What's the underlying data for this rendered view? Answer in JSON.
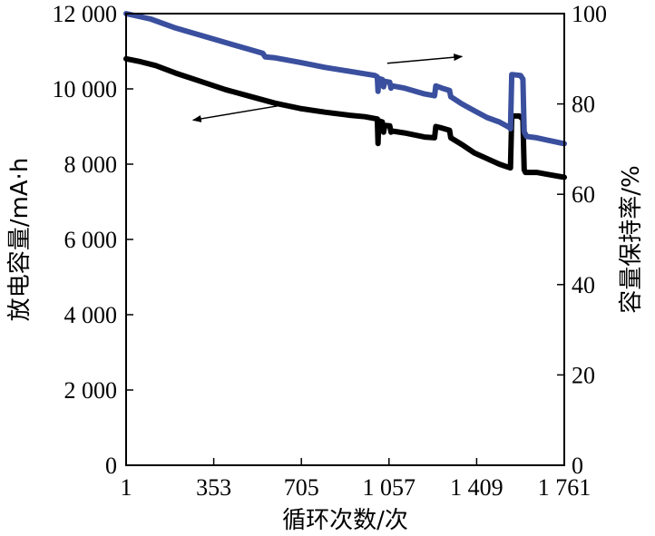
{
  "chart_data": {
    "type": "line",
    "xlabel": "循环次数/次",
    "ylabel_left": "放电容量/mA·h",
    "ylabel_right": "容量保持率/%",
    "x_ticks": [
      {
        "value": 1,
        "label": "1"
      },
      {
        "value": 353,
        "label": "353"
      },
      {
        "value": 705,
        "label": "705"
      },
      {
        "value": 1057,
        "label": "1 057"
      },
      {
        "value": 1409,
        "label": "1 409"
      },
      {
        "value": 1761,
        "label": "1 761"
      }
    ],
    "y_left_ticks": [
      {
        "value": 0,
        "label": "0"
      },
      {
        "value": 2000,
        "label": "2 000"
      },
      {
        "value": 4000,
        "label": "4 000"
      },
      {
        "value": 6000,
        "label": "6 000"
      },
      {
        "value": 8000,
        "label": "8 000"
      },
      {
        "value": 10000,
        "label": "10 000"
      },
      {
        "value": 12000,
        "label": "12 000"
      }
    ],
    "y_right_ticks": [
      {
        "value": 0,
        "label": "0"
      },
      {
        "value": 20,
        "label": "20"
      },
      {
        "value": 40,
        "label": "40"
      },
      {
        "value": 60,
        "label": "60"
      },
      {
        "value": 80,
        "label": "80"
      },
      {
        "value": 100,
        "label": "100"
      }
    ],
    "xlim": [
      1,
      1761
    ],
    "ylim_left": [
      0,
      12000
    ],
    "ylim_right": [
      0,
      100
    ],
    "grid": false,
    "series": [
      {
        "axis": "left",
        "color": "#000000",
        "points": [
          [
            1,
            10800
          ],
          [
            60,
            10720
          ],
          [
            120,
            10620
          ],
          [
            200,
            10420
          ],
          [
            300,
            10200
          ],
          [
            400,
            9980
          ],
          [
            500,
            9800
          ],
          [
            600,
            9620
          ],
          [
            700,
            9480
          ],
          [
            800,
            9380
          ],
          [
            900,
            9300
          ],
          [
            960,
            9260
          ],
          [
            1010,
            9200
          ],
          [
            1013,
            8550
          ],
          [
            1016,
            9150
          ],
          [
            1030,
            9120
          ],
          [
            1035,
            8850
          ],
          [
            1040,
            9030
          ],
          [
            1060,
            9020
          ],
          [
            1065,
            8850
          ],
          [
            1070,
            8880
          ],
          [
            1120,
            8830
          ],
          [
            1200,
            8720
          ],
          [
            1240,
            8700
          ],
          [
            1245,
            9000
          ],
          [
            1270,
            8960
          ],
          [
            1300,
            8900
          ],
          [
            1305,
            8700
          ],
          [
            1350,
            8520
          ],
          [
            1400,
            8300
          ],
          [
            1450,
            8150
          ],
          [
            1500,
            8000
          ],
          [
            1535,
            7920
          ],
          [
            1545,
            7900
          ],
          [
            1550,
            9280
          ],
          [
            1580,
            9280
          ],
          [
            1595,
            9200
          ],
          [
            1600,
            7850
          ],
          [
            1605,
            7780
          ],
          [
            1650,
            7780
          ],
          [
            1700,
            7720
          ],
          [
            1761,
            7650
          ]
        ]
      },
      {
        "axis": "right",
        "color": "#3a4f9e",
        "points": [
          [
            1,
            100
          ],
          [
            100,
            98.8
          ],
          [
            200,
            96.8
          ],
          [
            300,
            95.2
          ],
          [
            400,
            93.6
          ],
          [
            500,
            92.0
          ],
          [
            550,
            91.2
          ],
          [
            560,
            90.4
          ],
          [
            600,
            90.2
          ],
          [
            700,
            89.2
          ],
          [
            800,
            88.1
          ],
          [
            900,
            87.2
          ],
          [
            1000,
            86.3
          ],
          [
            1010,
            86.0
          ],
          [
            1013,
            82.8
          ],
          [
            1016,
            85.6
          ],
          [
            1030,
            85.4
          ],
          [
            1035,
            83.8
          ],
          [
            1040,
            85.0
          ],
          [
            1060,
            84.8
          ],
          [
            1065,
            83.5
          ],
          [
            1070,
            84.0
          ],
          [
            1120,
            83.5
          ],
          [
            1200,
            82.2
          ],
          [
            1240,
            81.8
          ],
          [
            1245,
            84.0
          ],
          [
            1270,
            83.5
          ],
          [
            1300,
            83.0
          ],
          [
            1305,
            81.6
          ],
          [
            1350,
            80.0
          ],
          [
            1400,
            78.5
          ],
          [
            1450,
            77.0
          ],
          [
            1500,
            76.0
          ],
          [
            1540,
            74.8
          ],
          [
            1545,
            74.5
          ],
          [
            1550,
            86.5
          ],
          [
            1585,
            86.3
          ],
          [
            1595,
            85.5
          ],
          [
            1600,
            73.8
          ],
          [
            1610,
            72.8
          ],
          [
            1650,
            72.5
          ],
          [
            1700,
            71.9
          ],
          [
            1761,
            71.2
          ]
        ]
      }
    ],
    "annotations": [
      {
        "type": "arrow",
        "from": [
          1050,
          89.0
        ],
        "to": [
          1350,
          90.5
        ],
        "axis": "right"
      },
      {
        "type": "arrow",
        "from": [
          640,
          9580
        ],
        "to": [
          270,
          9170
        ],
        "axis": "left"
      }
    ]
  }
}
